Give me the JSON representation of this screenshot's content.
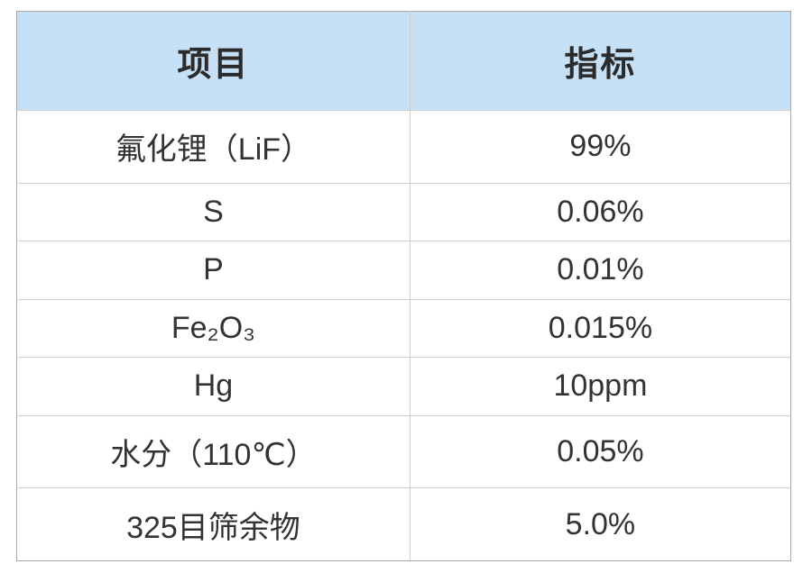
{
  "chart_data": {
    "type": "table",
    "columns": [
      "项目",
      "指标"
    ],
    "rows": [
      [
        "氟化锂（LiF）",
        "99%"
      ],
      [
        "S",
        "0.06%"
      ],
      [
        "P",
        "0.01%"
      ],
      [
        "Fe₂O₃",
        "0.015%"
      ],
      [
        "Hg",
        "10ppm"
      ],
      [
        "水分（110℃）",
        "0.05%"
      ],
      [
        "325目筛余物",
        "5.0%"
      ]
    ]
  },
  "colors": {
    "header_bg": "#c6e0f6",
    "header_text": "#2b2b2b",
    "body_bg": "#ffffff",
    "body_text": "#333333",
    "outer_border": "#a8a8a8",
    "inner_border": "#cccccc",
    "page_bg": "#ffffff"
  }
}
